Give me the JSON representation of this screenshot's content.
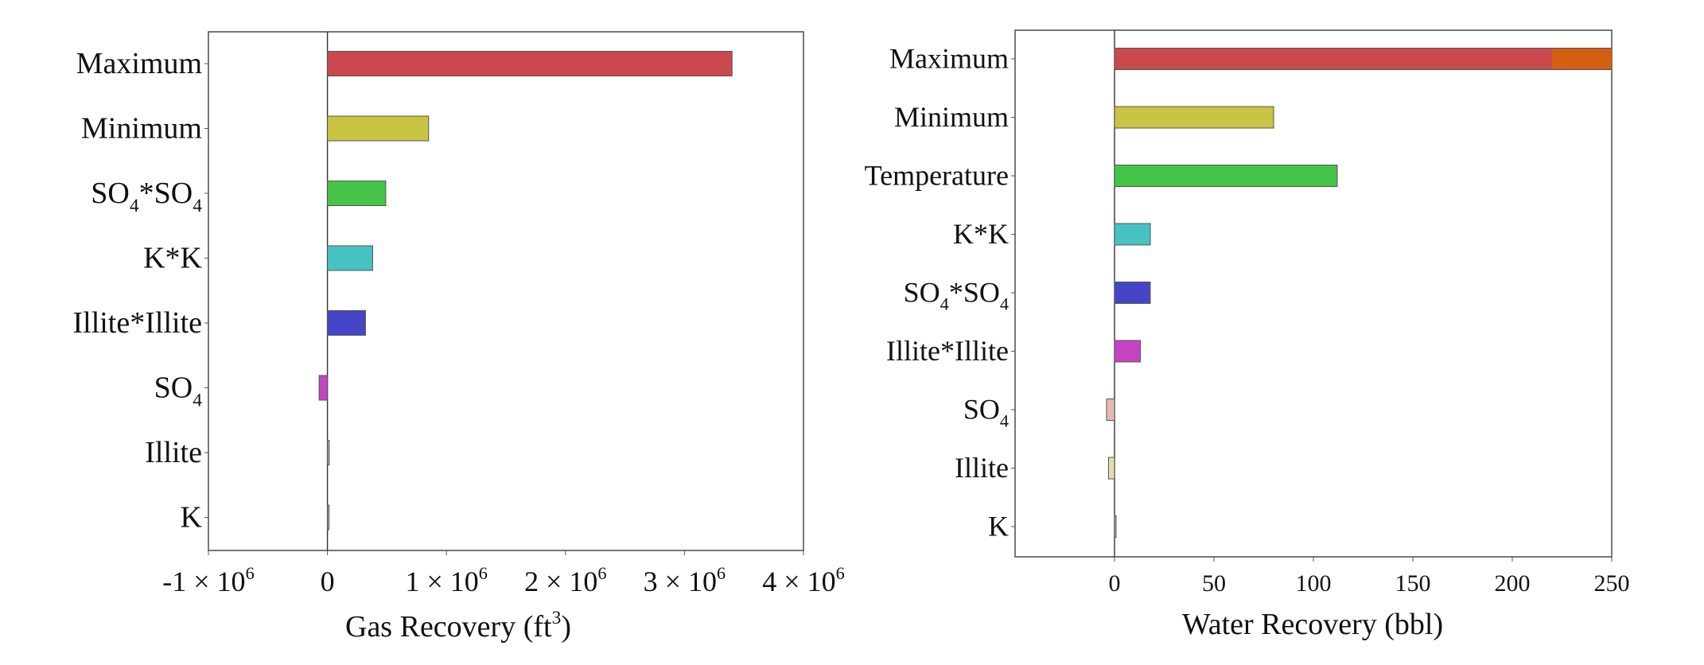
{
  "chart_data": [
    {
      "type": "bar",
      "orientation": "horizontal",
      "categories": [
        "Maximum",
        "Minimum",
        "SO4*SO4",
        "K*K",
        "Illite*Illite",
        "SO4",
        "Illite",
        "K"
      ],
      "category_labels": [
        [
          "Maximum"
        ],
        [
          "Minimum"
        ],
        [
          "SO",
          {
            "sub": "4"
          },
          "*SO",
          {
            "sub": "4"
          }
        ],
        [
          "K*K"
        ],
        [
          "Illite*Illite"
        ],
        [
          "SO",
          {
            "sub": "4"
          }
        ],
        [
          "Illite"
        ],
        [
          "K"
        ]
      ],
      "values": [
        3400000,
        850000,
        490000,
        380000,
        320000,
        -70000,
        15000,
        10000
      ],
      "colors": [
        "#c9494f",
        "#c9c442",
        "#46c449",
        "#46c2c2",
        "#4545c7",
        "#c444c4",
        "#c79a9a",
        "#b0b090"
      ],
      "xlim": [
        -1000000,
        4000000
      ],
      "xticks": [
        {
          "value": -1000000,
          "label": [
            "-1 × 10",
            {
              "sup": "6"
            }
          ]
        },
        {
          "value": 0,
          "label": [
            "0"
          ]
        },
        {
          "value": 1000000,
          "label": [
            "1 × 10",
            {
              "sup": "6"
            }
          ]
        },
        {
          "value": 2000000,
          "label": [
            "2 × 10",
            {
              "sup": "6"
            }
          ]
        },
        {
          "value": 3000000,
          "label": [
            "3 × 10",
            {
              "sup": "6"
            }
          ]
        },
        {
          "value": 4000000,
          "label": [
            "4 × 10",
            {
              "sup": "6"
            }
          ]
        }
      ],
      "xlabel": [
        "Gas Recovery (ft",
        {
          "sup": "3"
        },
        ")"
      ],
      "ylabel": "",
      "title": "",
      "grid": false,
      "zero_line": true
    },
    {
      "type": "bar",
      "orientation": "horizontal",
      "categories": [
        "Maximum",
        "Minimum",
        "Temperature",
        "K*K",
        "SO4*SO4",
        "Illite*Illite",
        "SO4",
        "Illite",
        "K"
      ],
      "category_labels": [
        [
          "Maximum"
        ],
        [
          "Minimum"
        ],
        [
          "Temperature"
        ],
        [
          "K*K"
        ],
        [
          "SO",
          {
            "sub": "4"
          },
          "*SO",
          {
            "sub": "4"
          }
        ],
        [
          "Illite*Illite"
        ],
        [
          "SO",
          {
            "sub": "4"
          }
        ],
        [
          "Illite"
        ],
        [
          "K"
        ]
      ],
      "values": [
        250,
        80,
        112,
        18,
        18,
        13,
        -4,
        -3,
        0.5
      ],
      "overflow_segment": {
        "category": "Maximum",
        "from": 220,
        "color": "#d35f0f"
      },
      "colors": [
        "#c9494f",
        "#c9c442",
        "#46c449",
        "#46c2c2",
        "#4545c7",
        "#c444c4",
        "#e8b7b7",
        "#e2e0a8",
        "#b0b0b0"
      ],
      "xlim": [
        -50,
        250
      ],
      "xticks": [
        {
          "value": 0,
          "label": [
            "0"
          ]
        },
        {
          "value": 50,
          "label": [
            "50"
          ]
        },
        {
          "value": 100,
          "label": [
            "100"
          ]
        },
        {
          "value": 150,
          "label": [
            "150"
          ]
        },
        {
          "value": 200,
          "label": [
            "200"
          ]
        },
        {
          "value": 250,
          "label": [
            "250"
          ]
        }
      ],
      "xlabel": [
        "Water Recovery (bbl)"
      ],
      "ylabel": "",
      "title": "",
      "grid": false,
      "zero_line": true
    }
  ]
}
